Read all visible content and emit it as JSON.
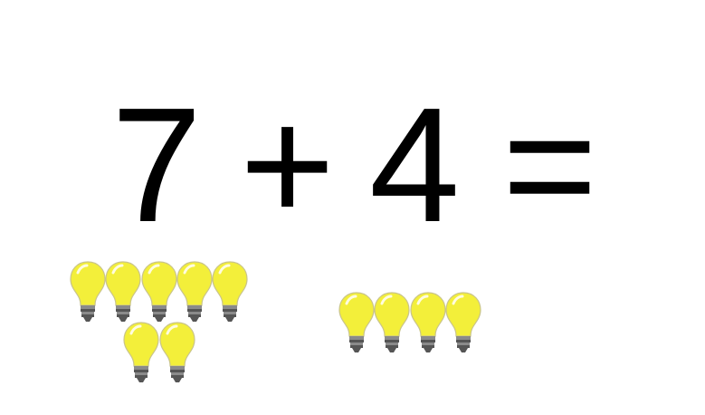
{
  "equation": {
    "operand_a": "7",
    "operator": "+",
    "operand_b": "4",
    "equals": "="
  },
  "counters": {
    "group_a_count": 7,
    "group_b_count": 4,
    "icon": "light-bulb-icon"
  },
  "colors": {
    "text": "#000000",
    "bulb_glass": "#f3ef3a",
    "bulb_highlight": "#fffce0",
    "bulb_outline": "#c9c48a",
    "bulb_base": "#8a8a8a",
    "bulb_base_dark": "#555555"
  }
}
